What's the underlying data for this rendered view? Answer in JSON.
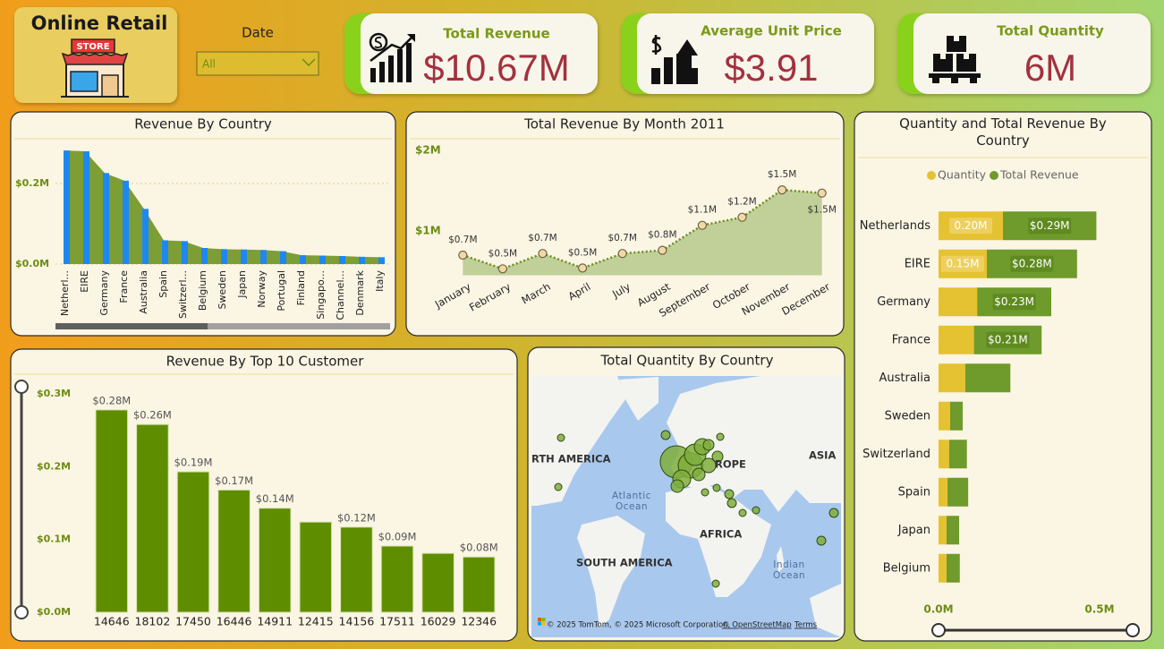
{
  "header": {
    "title": "Online Retail",
    "store_sign": "STORE"
  },
  "slicer": {
    "label": "Date",
    "value": "All"
  },
  "kpis": [
    {
      "title": "Total Revenue",
      "value": "$10.67M"
    },
    {
      "title": "Average Unit Price",
      "value": "$3.91"
    },
    {
      "title": "Total Quantity",
      "value": "6M"
    }
  ],
  "chart_data": [
    {
      "type": "bar",
      "title": "Revenue By Country",
      "categories": [
        "Netherl...",
        "EIRE",
        "Germany",
        "France",
        "Australia",
        "Spain",
        "Switzerl...",
        "Belgium",
        "Sweden",
        "Japan",
        "Norway",
        "Portugal",
        "Finland",
        "Singapo...",
        "Channel...",
        "Denmark",
        "Italy"
      ],
      "values": [
        0.282,
        0.28,
        0.226,
        0.207,
        0.137,
        0.059,
        0.057,
        0.04,
        0.037,
        0.036,
        0.035,
        0.032,
        0.022,
        0.021,
        0.02,
        0.018,
        0.017
      ],
      "color": "#1e88f0",
      "area_color": "#7d9e35",
      "ylim": [
        0,
        0.3
      ],
      "yticks": [
        {
          "value": 0,
          "label": "$0.0M"
        },
        {
          "value": 0.2,
          "label": "$0.2M"
        }
      ],
      "grid": true
    },
    {
      "type": "area",
      "title": "Total Revenue By Month 2011",
      "categories": [
        "January",
        "February",
        "March",
        "April",
        "July",
        "August",
        "September",
        "October",
        "November",
        "December"
      ],
      "values": [
        0.7,
        0.53,
        0.72,
        0.54,
        0.72,
        0.76,
        1.07,
        1.17,
        1.51,
        1.47
      ],
      "value_labels": [
        "$0.7M",
        "$0.5M",
        "$0.7M",
        "$0.5M",
        "$0.7M",
        "$0.8M",
        "$1.1M",
        "$1.2M",
        "$1.5M",
        "$1.5M"
      ],
      "color": "#6b8e23",
      "ylim": [
        0.45,
        2.05
      ],
      "yticks": [
        {
          "value": 1,
          "label": "$1M"
        },
        {
          "value": 2,
          "label": "$2M"
        }
      ]
    },
    {
      "type": "hbar",
      "title": "Quantity and Total Revenue By Country",
      "stacked": true,
      "legend": "top",
      "categories": [
        "Netherlands",
        "EIRE",
        "Germany",
        "France",
        "Australia",
        "Sweden",
        "Switzerland",
        "Spain",
        "Japan",
        "Belgium"
      ],
      "series": [
        {
          "name": "Quantity",
          "color": "#e5c232",
          "values": [
            0.2,
            0.15,
            0.12,
            0.11,
            0.083,
            0.036,
            0.033,
            0.028,
            0.025,
            0.025
          ],
          "value_labels": [
            "0.20M",
            "0.15M",
            null,
            null,
            null,
            null,
            null,
            null,
            null,
            null
          ]
        },
        {
          "name": "Total Revenue",
          "color": "#6f9a2c",
          "values": [
            0.29,
            0.28,
            0.23,
            0.21,
            0.14,
            0.039,
            0.055,
            0.064,
            0.039,
            0.041
          ],
          "value_labels": [
            "$0.29M",
            "$0.28M",
            "$0.23M",
            "$0.21M",
            null,
            null,
            null,
            null,
            null,
            null
          ]
        }
      ],
      "xlim": [
        0,
        0.6
      ],
      "xticks": [
        {
          "value": 0,
          "label": "0.0M"
        },
        {
          "value": 0.5,
          "label": "0.5M"
        }
      ]
    },
    {
      "type": "bar",
      "title": "Revenue By Top 10 Customer",
      "categories": [
        "14646",
        "18102",
        "17450",
        "16446",
        "14911",
        "12415",
        "14156",
        "17511",
        "16029",
        "12346"
      ],
      "values": [
        0.278,
        0.258,
        0.193,
        0.168,
        0.143,
        0.124,
        0.117,
        0.091,
        0.081,
        0.076
      ],
      "value_labels": [
        "$0.28M",
        "$0.26M",
        "$0.19M",
        "$0.17M",
        "$0.14M",
        null,
        "$0.12M",
        "$0.09M",
        null,
        "$0.08M"
      ],
      "color": "#5f8d00",
      "ylim": [
        0,
        0.3
      ],
      "yticks": [
        {
          "value": 0,
          "label": "$0.0M"
        },
        {
          "value": 0.1,
          "label": "$0.1M"
        },
        {
          "value": 0.2,
          "label": "$0.2M"
        },
        {
          "value": 0.3,
          "label": "$0.3M"
        }
      ]
    },
    {
      "type": "map",
      "title": "Total Quantity By Country",
      "map_labels": [
        "RTH AMERICA",
        "ROPE",
        "ASIA",
        "Atlantic",
        "Ocean",
        "AFRICA",
        "SOUTH AMERICA",
        "Indian",
        "Ocean"
      ],
      "attribution": "© 2025 TomTom, © 2025 Microsoft Corporation,",
      "attribution_link": "© OpenStreetMap",
      "terms": "Terms"
    }
  ]
}
